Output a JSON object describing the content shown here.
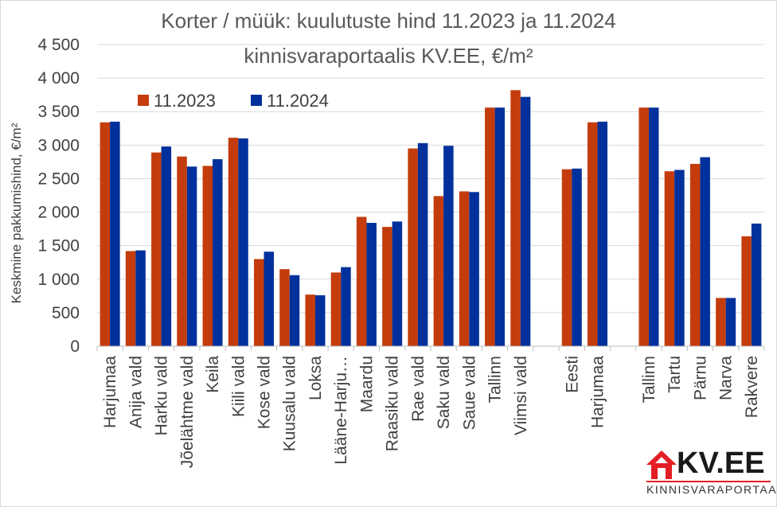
{
  "chart_data": {
    "type": "bar",
    "title": [
      "Korter / müük: kuulutuste hind 11.2023 ja 11.2024",
      "kinnisvaraportaalis KV.EE, €/m²"
    ],
    "ylabel": "Keskmine pakkumishind, €/m²",
    "xlabel": "",
    "ylim": [
      0,
      4500
    ],
    "yticks": [
      0,
      500,
      1000,
      1500,
      2000,
      2500,
      3000,
      3500,
      4000,
      4500
    ],
    "ytick_labels": [
      "0",
      "500",
      "1 000",
      "1 500",
      "2 000",
      "2 500",
      "3 000",
      "3 500",
      "4 000",
      "4 500"
    ],
    "grid": true,
    "legend_position": "top-left",
    "categories": [
      "Harjumaa",
      "Anija vald",
      "Harku vald",
      "Jõelähtme vald",
      "Keila",
      "Kiili vald",
      "Kose vald",
      "Kuusalu vald",
      "Loksa",
      "Lääne-Harju…",
      "Maardu",
      "Raasiku vald",
      "Rae vald",
      "Saku vald",
      "Saue vald",
      "Tallinn",
      "Viimsi vald",
      "",
      "Eesti",
      "Harjumaa",
      "",
      "Tallinn",
      "Tartu",
      "Pärnu",
      "Narva",
      "Rakvere"
    ],
    "series": [
      {
        "name": "11.2023",
        "color": "#c43c0c",
        "values": [
          3340,
          1420,
          2890,
          2830,
          2690,
          3110,
          1300,
          1150,
          770,
          1100,
          1930,
          1780,
          2950,
          2240,
          2310,
          3560,
          3820,
          null,
          2640,
          3340,
          null,
          3560,
          2610,
          2720,
          720,
          1640
        ]
      },
      {
        "name": "11.2024",
        "color": "#00309c",
        "values": [
          3350,
          1430,
          2980,
          2680,
          2790,
          3100,
          1410,
          1060,
          760,
          1180,
          1840,
          1860,
          3030,
          2990,
          2300,
          3560,
          3720,
          null,
          2650,
          3350,
          null,
          3560,
          2630,
          2820,
          720,
          1830
        ]
      }
    ]
  },
  "logo": {
    "brand": "KV.EE",
    "tagline": "KINNISVARAPORTAAL",
    "colors": {
      "accent": "#e31e24",
      "text": "#1a1a1a"
    }
  }
}
